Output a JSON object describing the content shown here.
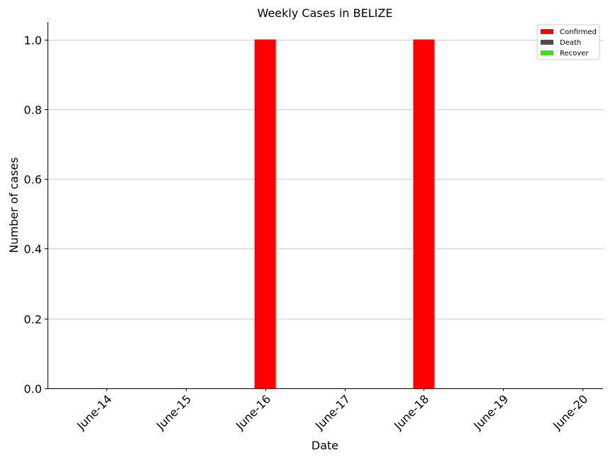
{
  "chart_data": {
    "type": "bar",
    "title": "Weekly Cases in BELIZE",
    "xlabel": "Date",
    "ylabel": "Number of cases",
    "categories": [
      "June-14",
      "June-15",
      "June-16",
      "June-17",
      "June-18",
      "June-19",
      "June-20"
    ],
    "series": [
      {
        "name": "Confirmed",
        "color": "#ff0000",
        "values": [
          0,
          0,
          1,
          0,
          1,
          0,
          0
        ]
      },
      {
        "name": "Death",
        "color": "#4d4d4d",
        "values": [
          0,
          0,
          0,
          0,
          0,
          0,
          0
        ]
      },
      {
        "name": "Recover",
        "color": "#44dd11",
        "values": [
          0,
          0,
          0,
          0,
          0,
          0,
          0
        ]
      }
    ],
    "ylim": [
      0,
      1.05
    ],
    "yticks": [
      "0.0",
      "0.2",
      "0.4",
      "0.6",
      "0.8",
      "1.0"
    ],
    "grid": "horizontal",
    "legend_position": "top-right"
  }
}
